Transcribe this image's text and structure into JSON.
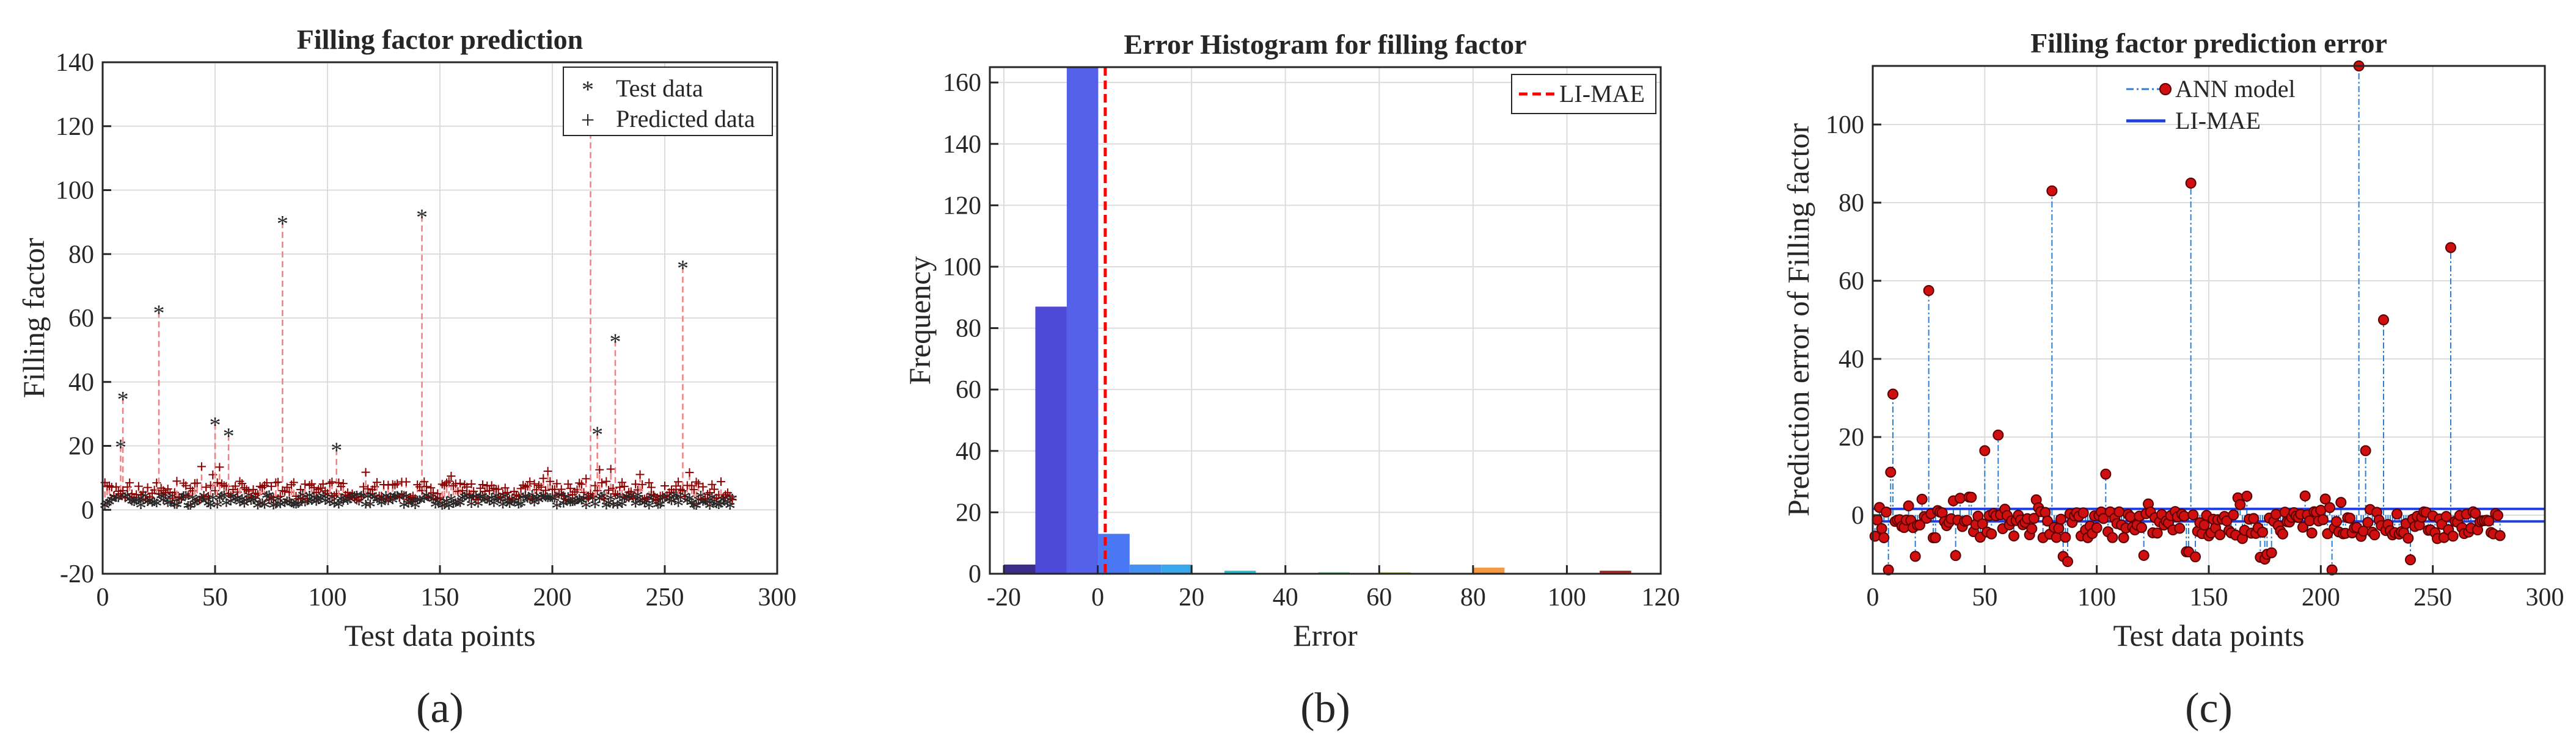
{
  "chart_data": [
    {
      "id": "a",
      "type": "scatter",
      "title": "Filling factor prediction",
      "xlabel": "Test data points",
      "ylabel": "Filling factor",
      "xlim": [
        0,
        300
      ],
      "ylim": [
        -20,
        140
      ],
      "xticks": [
        0,
        50,
        100,
        150,
        200,
        250,
        300
      ],
      "yticks": [
        -20,
        0,
        20,
        40,
        60,
        80,
        100,
        120,
        140
      ],
      "grid": true,
      "legend": "top-right",
      "n_points": 280,
      "series": [
        {
          "name": "Test data",
          "marker": "*",
          "color": "#0000ff"
        },
        {
          "name": "Predicted data",
          "marker": "+",
          "color": "#8b0000"
        }
      ],
      "outliers": [
        {
          "x": 8,
          "test": 20,
          "pred": 5
        },
        {
          "x": 9,
          "test": 35,
          "pred": 6
        },
        {
          "x": 25,
          "test": 62,
          "pred": 5
        },
        {
          "x": 50,
          "test": 27,
          "pred": 6
        },
        {
          "x": 56,
          "test": 23.5,
          "pred": 5
        },
        {
          "x": 80,
          "test": 90,
          "pred": 6
        },
        {
          "x": 104,
          "test": 19,
          "pred": 5
        },
        {
          "x": 142,
          "test": 92,
          "pred": 6
        },
        {
          "x": 217,
          "test": 118,
          "pred": 5
        },
        {
          "x": 220,
          "test": 24,
          "pred": 6
        },
        {
          "x": 228,
          "test": 53,
          "pred": 5
        },
        {
          "x": 258,
          "test": 76,
          "pred": 6
        }
      ],
      "panel_label": "(a)"
    },
    {
      "id": "b",
      "type": "bar",
      "title": "Error Histogram for filling factor",
      "xlabel": "Error",
      "ylabel": "Frequency",
      "xlim": [
        -23,
        120
      ],
      "ylim": [
        0,
        165
      ],
      "xticks": [
        -20,
        0,
        20,
        40,
        60,
        80,
        100,
        120
      ],
      "yticks": [
        0,
        20,
        40,
        60,
        80,
        100,
        120,
        140,
        160
      ],
      "grid": true,
      "legend": "top-right",
      "bins": [
        {
          "from": -20,
          "to": -13.3,
          "count": 3,
          "color": "#3d2d8a"
        },
        {
          "from": -13.3,
          "to": -6.6,
          "count": 87,
          "color": "#4b49d6"
        },
        {
          "from": -6.6,
          "to": 0.1,
          "count": 165,
          "color": "#5560e8"
        },
        {
          "from": 0.1,
          "to": 6.8,
          "count": 13,
          "color": "#4a78f5"
        },
        {
          "from": 6.8,
          "to": 13.5,
          "count": 3,
          "color": "#4591f2"
        },
        {
          "from": 13.5,
          "to": 20.2,
          "count": 3,
          "color": "#3aa6eb"
        },
        {
          "from": 27,
          "to": 33.7,
          "count": 1,
          "color": "#27c3d9"
        },
        {
          "from": 47,
          "to": 53.7,
          "count": 0.5,
          "color": "#73d38c"
        },
        {
          "from": 60,
          "to": 66.7,
          "count": 0.5,
          "color": "#c8d341"
        },
        {
          "from": 80,
          "to": 86.7,
          "count": 2,
          "color": "#f59a43"
        },
        {
          "from": 107,
          "to": 113.7,
          "count": 1,
          "color": "#b42a1e"
        }
      ],
      "vline": {
        "name": "LI-MAE",
        "x": 1.6,
        "color": "#ff0000"
      },
      "panel_label": "(b)"
    },
    {
      "id": "c",
      "type": "scatter",
      "title": "Filling factor prediction error",
      "xlabel": "Test data points",
      "ylabel": "Prediction error of Filling factor",
      "xlim": [
        0,
        300
      ],
      "ylim": [
        -15,
        115
      ],
      "xticks": [
        0,
        50,
        100,
        150,
        200,
        250,
        300
      ],
      "yticks": [
        0,
        20,
        40,
        60,
        80,
        100
      ],
      "grid": true,
      "legend": "top-center",
      "n_points": 280,
      "series": [
        {
          "name": "ANN model",
          "style": "dash-dot stem with red dot",
          "color": "#2f7fd0"
        },
        {
          "name": "LI-MAE",
          "style": "solid line",
          "color": "#1f3fe0",
          "values": [
            -1.6,
            1.6
          ]
        }
      ],
      "outliers": [
        {
          "x": 8,
          "y": 11
        },
        {
          "x": 9,
          "y": 31
        },
        {
          "x": 25,
          "y": 57.5
        },
        {
          "x": 50,
          "y": 16.5
        },
        {
          "x": 56,
          "y": 20.5
        },
        {
          "x": 80,
          "y": 83
        },
        {
          "x": 104,
          "y": 10.5
        },
        {
          "x": 142,
          "y": 85
        },
        {
          "x": 217,
          "y": 115
        },
        {
          "x": 220,
          "y": 16.5
        },
        {
          "x": 228,
          "y": 50
        },
        {
          "x": 258,
          "y": 68.5
        },
        {
          "x": 7,
          "y": -14
        },
        {
          "x": 205,
          "y": -14
        }
      ],
      "panel_label": "(c)"
    }
  ]
}
